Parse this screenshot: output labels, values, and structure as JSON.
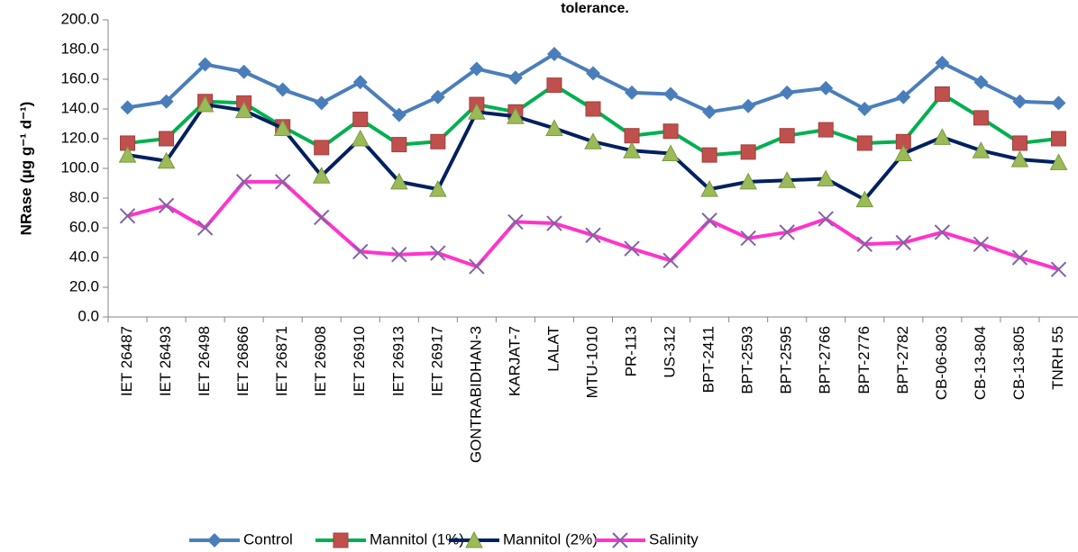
{
  "chart_data": {
    "type": "line",
    "title": "tolerance.",
    "y_label": "NRase (µg g⁻¹ d⁻¹)",
    "categories": [
      "IET 26487",
      "IET 26493",
      "IET 26498",
      "IET 26866",
      "IET 26871",
      "IET 26908",
      "IET 26910",
      "IET 26913",
      "IET 26917",
      "GONTRABIDHAN-3",
      "KARJAT-7",
      "LALAT",
      "MTU-1010",
      "PR-113",
      "US-312",
      "BPT-2411",
      "BPT-2593",
      "BPT-2595",
      "BPT-2766",
      "BPT-2776",
      "BPT-2782",
      "CB-06-803",
      "CB-13-804",
      "CB-13-805",
      "TNRH 55"
    ],
    "series": [
      {
        "name": "Control",
        "color": "#4a7ebb",
        "marker": "diamond",
        "marker_color": "#4a7ebb",
        "values": [
          141,
          145,
          170,
          165,
          153,
          144,
          158,
          136,
          148,
          167,
          161,
          177,
          164,
          151,
          150,
          138,
          142,
          151,
          154,
          140,
          148,
          171,
          158,
          145,
          144
        ]
      },
      {
        "name": "Mannitol (1%)",
        "color": "#00b050",
        "marker": "square",
        "marker_color": "#c0504d",
        "values": [
          117,
          120,
          145,
          144,
          128,
          114,
          133,
          116,
          118,
          143,
          138,
          156,
          140,
          122,
          125,
          109,
          111,
          122,
          126,
          117,
          118,
          150,
          134,
          117,
          120
        ]
      },
      {
        "name": "Mannitol (2%)",
        "color": "#002060",
        "marker": "triangle",
        "marker_color": "#9bbb59",
        "values": [
          109,
          105,
          143,
          139,
          127,
          95,
          120,
          91,
          86,
          138,
          135,
          127,
          118,
          112,
          110,
          86,
          91,
          92,
          93,
          79,
          110,
          121,
          112,
          106,
          104
        ]
      },
      {
        "name": "Salinity",
        "color": "#ff33cc",
        "marker": "x",
        "marker_color": "#8064a2",
        "values": [
          68,
          75,
          60,
          91,
          91,
          67,
          44,
          42,
          43,
          34,
          64,
          63,
          55,
          46,
          38,
          65,
          53,
          57,
          66,
          49,
          50,
          57,
          49,
          40,
          32
        ]
      }
    ],
    "ylim": [
      0,
      200
    ],
    "yticks": [
      {
        "value": 0,
        "label": "0.0"
      },
      {
        "value": 20,
        "label": "20.0"
      },
      {
        "value": 40,
        "label": "40.0"
      },
      {
        "value": 60,
        "label": "60.0"
      },
      {
        "value": 80,
        "label": "80.0"
      },
      {
        "value": 100,
        "label": "100.0"
      },
      {
        "value": 120,
        "label": "120.0"
      },
      {
        "value": 140,
        "label": "140.0"
      },
      {
        "value": 160,
        "label": "160.0"
      },
      {
        "value": 180,
        "label": "180.0"
      },
      {
        "value": 200,
        "label": "200.0"
      }
    ],
    "grid": false,
    "legend": "bottom"
  }
}
